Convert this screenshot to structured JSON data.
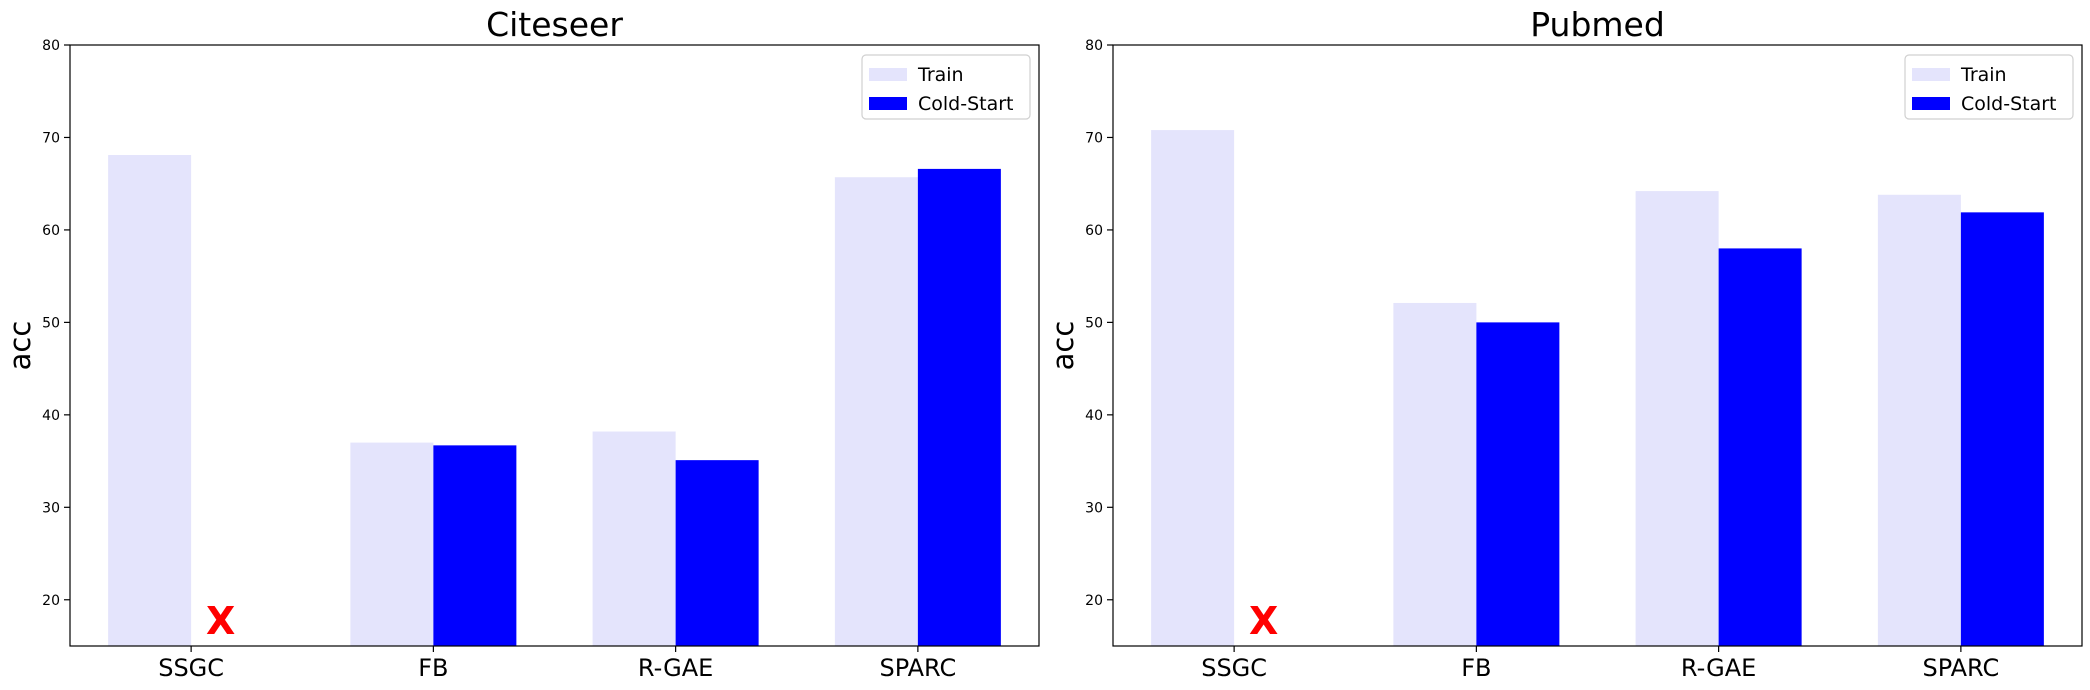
{
  "colors": {
    "train": "#e4e4fc",
    "cold_start": "#0000ff",
    "missing_marker": "#ff0000"
  },
  "missing_marker_text": "X",
  "chart_data": [
    {
      "type": "bar",
      "title": "Citeseer",
      "xlabel": "",
      "ylabel": "acc",
      "ylim": [
        15,
        80
      ],
      "yticks": [
        20,
        30,
        40,
        50,
        60,
        70,
        80
      ],
      "categories": [
        "SSGC",
        "FB",
        "R-GAE",
        "SPARC"
      ],
      "series": [
        {
          "name": "Train",
          "values": [
            68.1,
            37.0,
            38.2,
            65.7
          ]
        },
        {
          "name": "Cold-Start",
          "values": [
            null,
            36.7,
            35.1,
            66.6
          ]
        }
      ],
      "legend_position": "top-right",
      "grid": false
    },
    {
      "type": "bar",
      "title": "Pubmed",
      "xlabel": "",
      "ylabel": "acc",
      "ylim": [
        15,
        80
      ],
      "yticks": [
        20,
        30,
        40,
        50,
        60,
        70,
        80
      ],
      "categories": [
        "SSGC",
        "FB",
        "R-GAE",
        "SPARC"
      ],
      "series": [
        {
          "name": "Train",
          "values": [
            70.8,
            52.1,
            64.2,
            63.8
          ]
        },
        {
          "name": "Cold-Start",
          "values": [
            null,
            50.0,
            58.0,
            61.9
          ]
        }
      ],
      "legend_position": "top-right",
      "grid": false
    }
  ]
}
